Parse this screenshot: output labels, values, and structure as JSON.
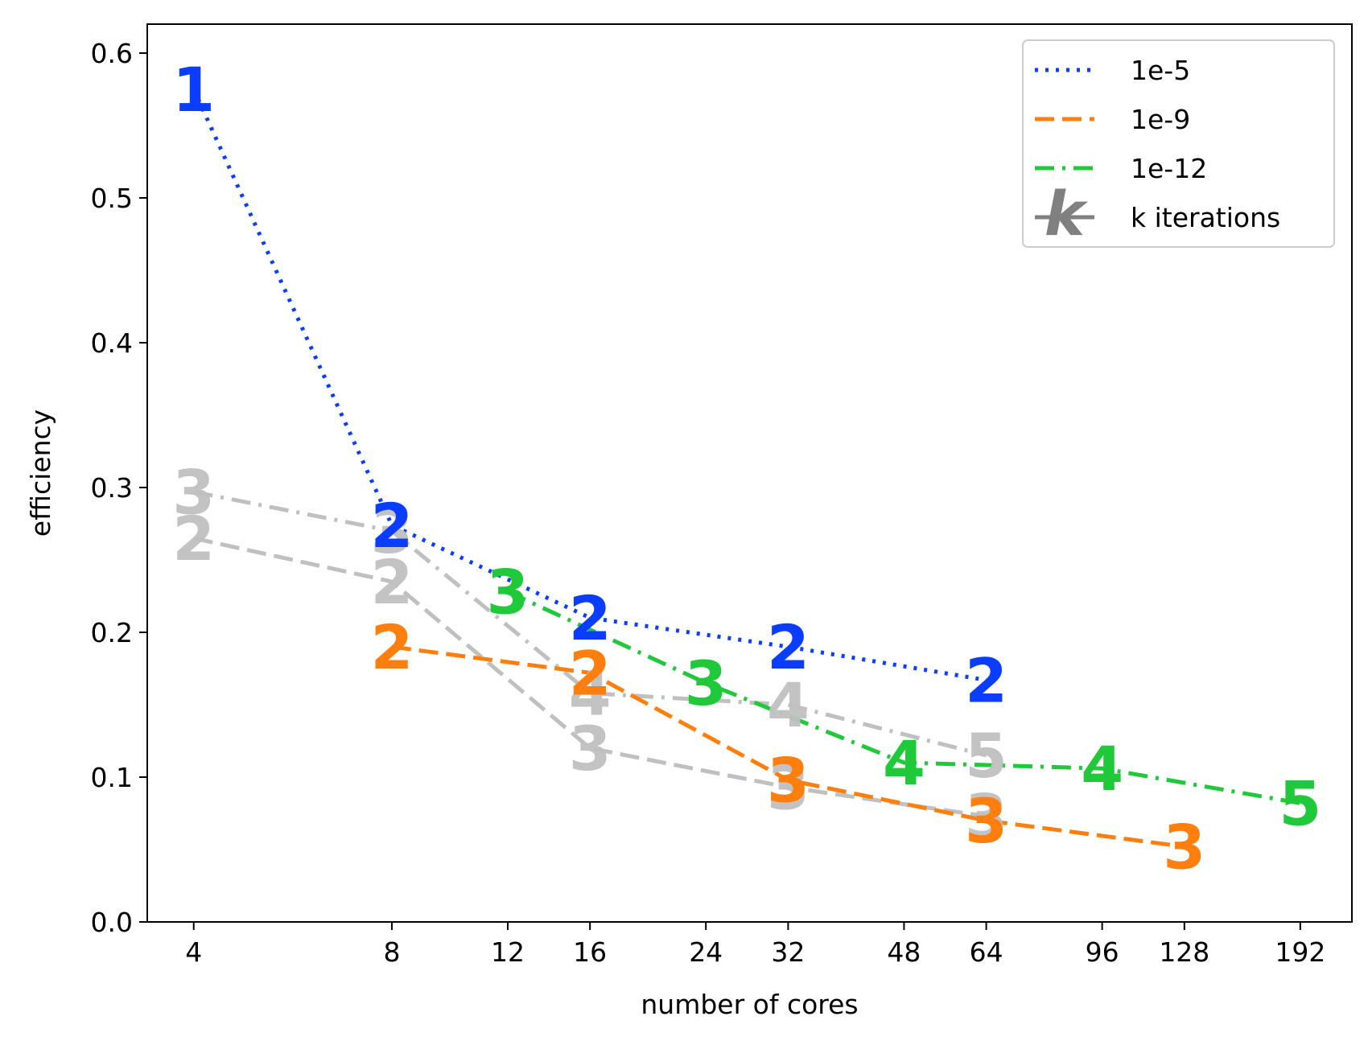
{
  "chart_data": {
    "type": "line",
    "xlabel": "number of cores",
    "ylabel": "efficiency",
    "x_scale": "log",
    "xlim": [
      3.4,
      230
    ],
    "ylim": [
      0.0,
      0.62
    ],
    "x_ticks": [
      4,
      8,
      12,
      16,
      24,
      32,
      48,
      64,
      96,
      128,
      192
    ],
    "y_ticks": [
      0.0,
      0.1,
      0.2,
      0.3,
      0.4,
      0.5,
      0.6
    ],
    "y_tick_labels": [
      "0.0",
      "0.1",
      "0.2",
      "0.3",
      "0.4",
      "0.5",
      "0.6"
    ],
    "grid": false,
    "legend_position": "top-right",
    "legend": [
      {
        "label": "1e-5",
        "color": "#0a3dff",
        "style": "dotted"
      },
      {
        "label": "1e-9",
        "color": "#ff7f0e",
        "style": "dashed"
      },
      {
        "label": "1e-12",
        "color": "#1fc93a",
        "style": "dashdot"
      },
      {
        "label": "k iterations",
        "color": "#808080",
        "style": "solid",
        "marker": "k"
      }
    ],
    "series": [
      {
        "name": "gray-dashed",
        "color": "#c0c0c0",
        "style": "dashed",
        "gray": true,
        "points": [
          {
            "x": 4,
            "y": 0.265,
            "k": "2"
          },
          {
            "x": 8,
            "y": 0.235,
            "k": "2"
          },
          {
            "x": 16,
            "y": 0.12,
            "k": "3"
          },
          {
            "x": 32,
            "y": 0.093,
            "k": "3"
          },
          {
            "x": 64,
            "y": 0.073,
            "k": "3"
          }
        ]
      },
      {
        "name": "gray-dashdot",
        "color": "#c0c0c0",
        "style": "dashdot",
        "gray": true,
        "points": [
          {
            "x": 4,
            "y": 0.297,
            "k": "3"
          },
          {
            "x": 8,
            "y": 0.27,
            "k": "3"
          },
          {
            "x": 16,
            "y": 0.158,
            "k": "4"
          },
          {
            "x": 32,
            "y": 0.15,
            "k": "4"
          },
          {
            "x": 64,
            "y": 0.115,
            "k": "5"
          }
        ]
      },
      {
        "name": "1e-5",
        "color": "#0a3dff",
        "style": "dotted",
        "points": [
          {
            "x": 4,
            "y": 0.575,
            "k": "1"
          },
          {
            "x": 8,
            "y": 0.274,
            "k": "2"
          },
          {
            "x": 16,
            "y": 0.21,
            "k": "2"
          },
          {
            "x": 32,
            "y": 0.19,
            "k": "2"
          },
          {
            "x": 64,
            "y": 0.167,
            "k": "2"
          }
        ]
      },
      {
        "name": "1e-9",
        "color": "#ff7f0e",
        "style": "dashed",
        "points": [
          {
            "x": 8,
            "y": 0.19,
            "k": "2"
          },
          {
            "x": 16,
            "y": 0.172,
            "k": "2"
          },
          {
            "x": 32,
            "y": 0.098,
            "k": "3"
          },
          {
            "x": 64,
            "y": 0.07,
            "k": "3"
          },
          {
            "x": 128,
            "y": 0.052,
            "k": "3"
          }
        ]
      },
      {
        "name": "1e-12",
        "color": "#1fc93a",
        "style": "dashdot",
        "points": [
          {
            "x": 12,
            "y": 0.228,
            "k": "3"
          },
          {
            "x": 24,
            "y": 0.165,
            "k": "3"
          },
          {
            "x": 48,
            "y": 0.11,
            "k": "4"
          },
          {
            "x": 96,
            "y": 0.106,
            "k": "4"
          },
          {
            "x": 192,
            "y": 0.082,
            "k": "5"
          }
        ]
      }
    ]
  }
}
